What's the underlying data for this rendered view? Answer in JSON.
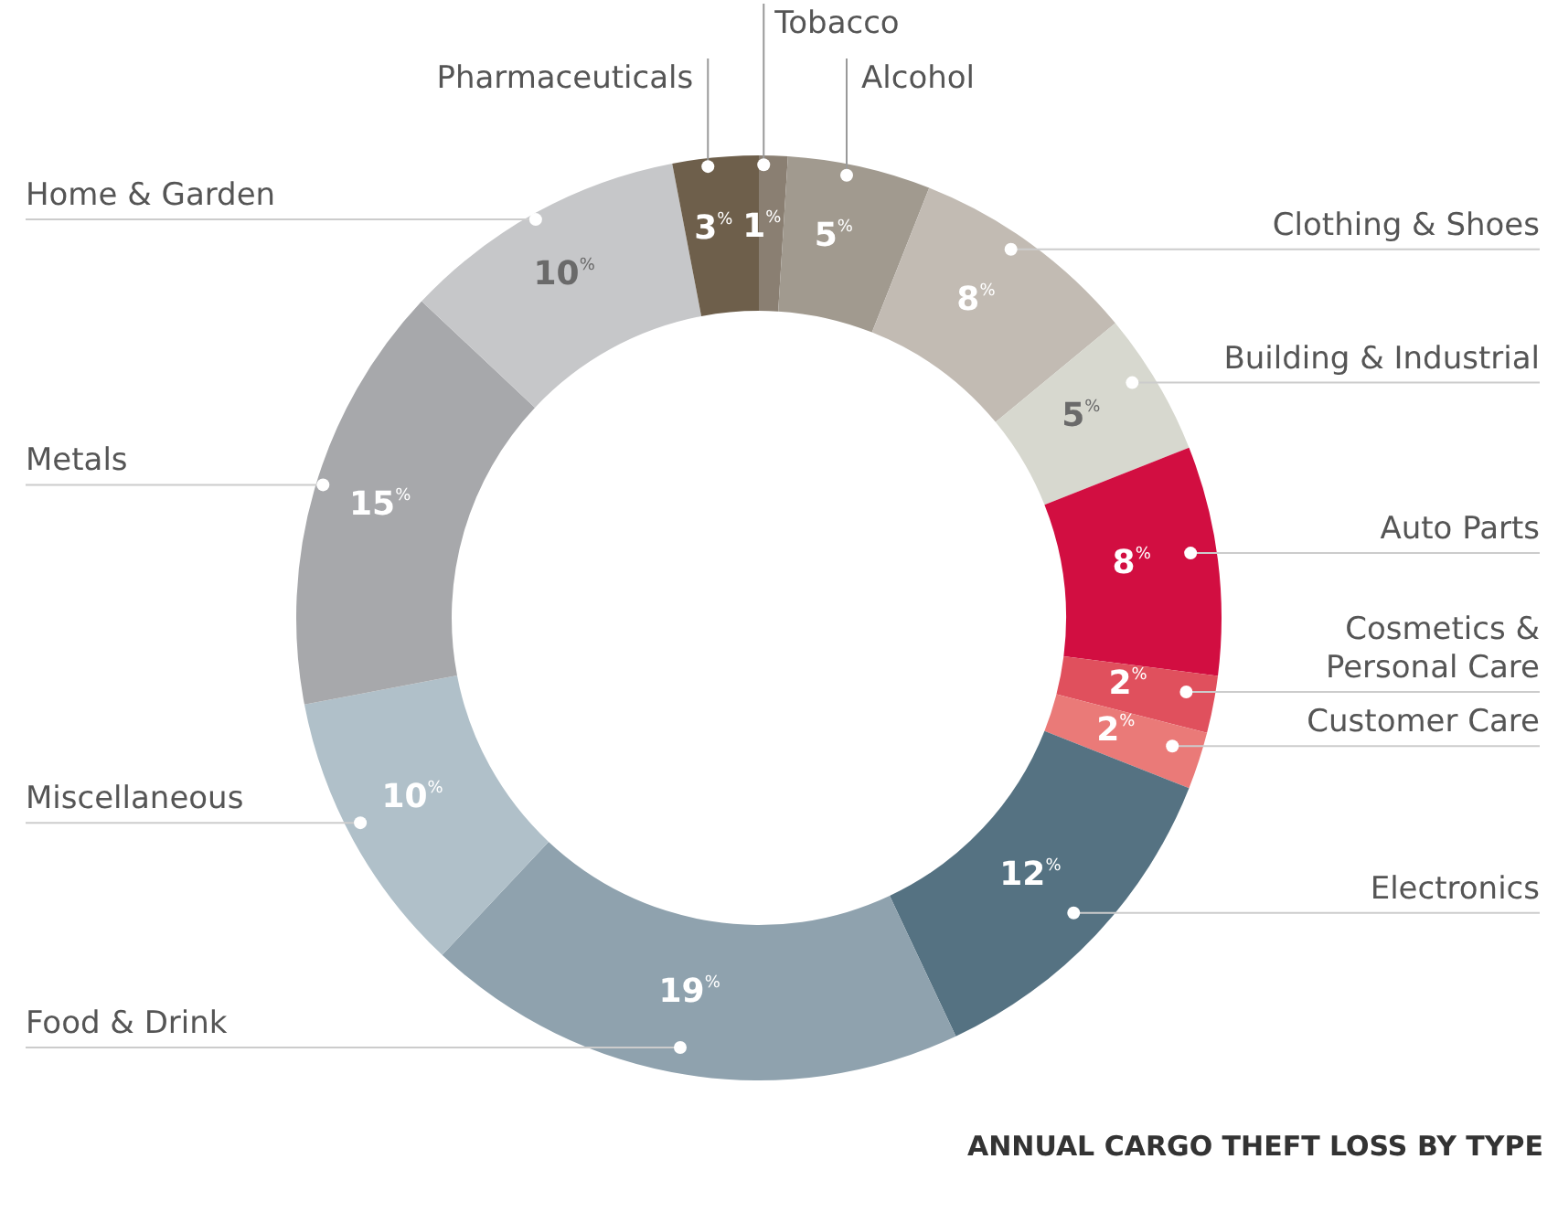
{
  "chart_data": {
    "type": "donut",
    "title": "ANNUAL CARGO THEFT LOSS BY TYPE",
    "categories": [
      "Tobacco",
      "Alcohol",
      "Clothing & Shoes",
      "Building & Industrial",
      "Auto Parts",
      "Cosmetics & Personal Care",
      "Customer Care",
      "Electronics",
      "Food & Drink",
      "Miscellaneous",
      "Metals",
      "Home & Garden",
      "Pharmaceuticals"
    ],
    "values": [
      1,
      5,
      8,
      5,
      8,
      2,
      2,
      12,
      19,
      10,
      15,
      10,
      3
    ],
    "colors": [
      "#8a7f72",
      "#a19a8f",
      "#c2bbb3",
      "#d7d8cf",
      "#d20e41",
      "#e0505d",
      "#ea7a78",
      "#557282",
      "#8fa2ae",
      "#b0c0c9",
      "#a7a8ab",
      "#c6c7c9",
      "#6e5f4b"
    ],
    "value_labels": [
      "1$^{%}$",
      "5$^{%}$",
      "8$^{%}$",
      "5$^{%}$",
      "8$^{%}$",
      "2$^{%}$",
      "2$^{%}$",
      "12$^{%}$",
      "19$^{%}$",
      "10$^{%}$",
      "15$^{%}$",
      "10$^{%}$",
      "3$^{%}$"
    ],
    "legend": false
  }
}
